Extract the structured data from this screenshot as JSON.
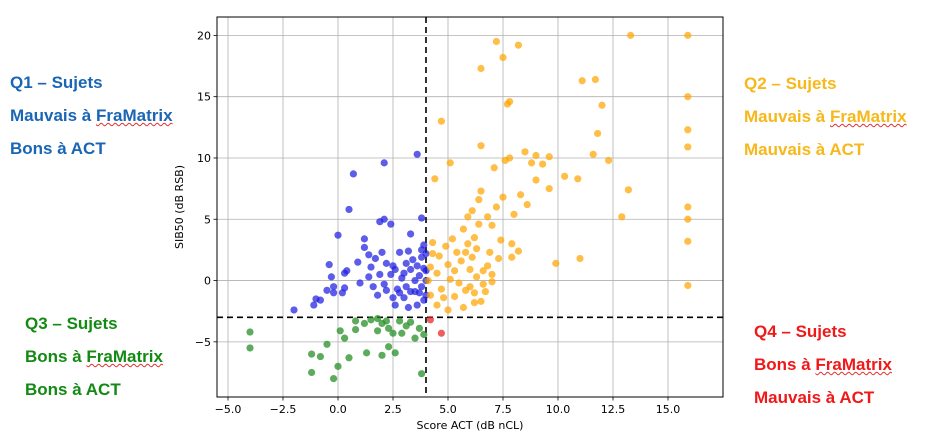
{
  "colors": {
    "q1": "#1a66b5",
    "q2": "#f6b81a",
    "q3": "#138a13",
    "q4": "#f01818",
    "q1_points": "#1f1fe0",
    "q2_points": "#ffa500",
    "q3_points": "#1f8a1f",
    "q4_points": "#e82020"
  },
  "annotations": {
    "q1": {
      "line1": "Q1 – Sujets",
      "line2_prefix": "Mauvais à ",
      "line2_brand": "FraMatrix",
      "line3": "Bons à ACT"
    },
    "q2": {
      "line1": "Q2 – Sujets",
      "line2_prefix": "Mauvais à ",
      "line2_brand": "FraMatrix",
      "line3": "Mauvais à ACT"
    },
    "q3": {
      "line1": "Q3 – Sujets",
      "line2_prefix": "Bons à ",
      "line2_brand": "FraMatrix",
      "line3": "Bons à ACT"
    },
    "q4": {
      "line1": "Q4 – Sujets",
      "line2_prefix": "Bons à ",
      "line2_brand": "FraMatrix",
      "line3": "Mauvais à ACT"
    }
  },
  "chart_data": {
    "type": "scatter",
    "title": "",
    "xlabel": "Score ACT (dB nCL)",
    "ylabel": "SIB50 (dB RSB)",
    "xlim": [
      -5.5,
      17.5
    ],
    "ylim": [
      -9.5,
      21.5
    ],
    "xticks": [
      -5.0,
      -2.5,
      0.0,
      2.5,
      5.0,
      7.5,
      10.0,
      12.5,
      15.0
    ],
    "xtick_labels": [
      "−5.0",
      "−2.5",
      "0.0",
      "2.5",
      "5.0",
      "7.5",
      "10.0",
      "12.5",
      "15.0"
    ],
    "yticks": [
      -5,
      0,
      5,
      10,
      15,
      20
    ],
    "ytick_labels": [
      "−5",
      "0",
      "5",
      "10",
      "15",
      "20"
    ],
    "grid": true,
    "thresholds": {
      "x": 4.0,
      "y": -3.0
    },
    "series": [
      {
        "quadrant": "Q1",
        "points": [
          [
            -2.0,
            -2.4
          ],
          [
            -1.1,
            -2.0
          ],
          [
            -1.0,
            -1.5
          ],
          [
            -0.8,
            -1.6
          ],
          [
            -0.5,
            -0.8
          ],
          [
            -0.3,
            0.3
          ],
          [
            -0.2,
            -1.0
          ],
          [
            -0.2,
            -0.5
          ],
          [
            0.2,
            -1.0
          ],
          [
            0.3,
            -0.6
          ],
          [
            0.3,
            0.6
          ],
          [
            0.4,
            0.8
          ],
          [
            0.5,
            5.8
          ],
          [
            0.7,
            8.7
          ],
          [
            0.9,
            1.5
          ],
          [
            1.0,
            -0.2
          ],
          [
            1.2,
            2.7
          ],
          [
            1.2,
            3.4
          ],
          [
            1.4,
            2.1
          ],
          [
            1.4,
            0.3
          ],
          [
            1.5,
            1.1
          ],
          [
            1.6,
            -0.5
          ],
          [
            1.7,
            1.8
          ],
          [
            1.8,
            -1.2
          ],
          [
            1.9,
            0.5
          ],
          [
            2.0,
            2.3
          ],
          [
            2.1,
            -0.3
          ],
          [
            2.1,
            5.0
          ],
          [
            2.2,
            1.4
          ],
          [
            2.2,
            -0.8
          ],
          [
            2.4,
            0.5
          ],
          [
            2.5,
            -1.4
          ],
          [
            2.5,
            1.2
          ],
          [
            2.6,
            0.9
          ],
          [
            2.6,
            -2.0
          ],
          [
            2.7,
            -0.7
          ],
          [
            2.8,
            2.3
          ],
          [
            2.8,
            -1.0
          ],
          [
            2.9,
            0.2
          ],
          [
            3.0,
            0.6
          ],
          [
            3.0,
            -1.4
          ],
          [
            3.1,
            1.4
          ],
          [
            3.1,
            -0.5
          ],
          [
            3.2,
            2.4
          ],
          [
            3.2,
            -2.2
          ],
          [
            3.3,
            0.9
          ],
          [
            3.3,
            -0.9
          ],
          [
            3.4,
            1.7
          ],
          [
            3.5,
            0.0
          ],
          [
            3.5,
            -0.9
          ],
          [
            3.6,
            1.2
          ],
          [
            3.6,
            10.3
          ],
          [
            3.6,
            -2.0
          ],
          [
            3.7,
            0.4
          ],
          [
            3.7,
            -1.0
          ],
          [
            3.8,
            1.9
          ],
          [
            3.8,
            5.1
          ],
          [
            3.8,
            2.5
          ],
          [
            3.8,
            -0.5
          ],
          [
            3.9,
            2.9
          ],
          [
            3.9,
            1.0
          ],
          [
            3.9,
            -1.6
          ],
          [
            4.0,
            0.0
          ],
          [
            4.0,
            0.8
          ],
          [
            4.0,
            -1.2
          ],
          [
            4.0,
            2.2
          ],
          [
            2.1,
            9.6
          ],
          [
            3.3,
            3.8
          ],
          [
            1.9,
            4.8
          ],
          [
            2.4,
            4.6
          ],
          [
            0.0,
            3.7
          ],
          [
            -0.4,
            1.3
          ]
        ]
      },
      {
        "quadrant": "Q2",
        "points": [
          [
            4.1,
            0.0
          ],
          [
            4.2,
            1.1
          ],
          [
            4.2,
            -1.2
          ],
          [
            4.3,
            2.2
          ],
          [
            4.3,
            3.1
          ],
          [
            4.4,
            8.3
          ],
          [
            4.5,
            0.6
          ],
          [
            4.5,
            -2.0
          ],
          [
            4.6,
            2.0
          ],
          [
            4.7,
            13.0
          ],
          [
            4.7,
            -0.7
          ],
          [
            4.8,
            -1.4
          ],
          [
            4.9,
            2.8
          ],
          [
            5.0,
            1.3
          ],
          [
            5.0,
            -2.4
          ],
          [
            5.1,
            0.1
          ],
          [
            5.1,
            9.6
          ],
          [
            5.2,
            3.4
          ],
          [
            5.3,
            -1.3
          ],
          [
            5.3,
            0.8
          ],
          [
            5.4,
            2.3
          ],
          [
            5.5,
            -0.2
          ],
          [
            5.6,
            1.6
          ],
          [
            5.7,
            -2.2
          ],
          [
            5.7,
            4.2
          ],
          [
            5.8,
            -0.8
          ],
          [
            5.9,
            3.0
          ],
          [
            5.9,
            5.2
          ],
          [
            6.0,
            -0.5
          ],
          [
            6.0,
            0.9
          ],
          [
            6.1,
            1.9
          ],
          [
            6.2,
            -1.8
          ],
          [
            6.2,
            -1.0
          ],
          [
            6.2,
            3.5
          ],
          [
            6.3,
            0.3
          ],
          [
            6.3,
            2.6
          ],
          [
            6.4,
            4.6
          ],
          [
            6.4,
            6.6
          ],
          [
            6.5,
            -1.7
          ],
          [
            6.5,
            7.3
          ],
          [
            6.5,
            11.0
          ],
          [
            6.6,
            0.8
          ],
          [
            6.6,
            -0.3
          ],
          [
            6.7,
            -0.9
          ],
          [
            6.8,
            1.2
          ],
          [
            6.8,
            5.2
          ],
          [
            6.9,
            2.3
          ],
          [
            7.0,
            -0.1
          ],
          [
            7.0,
            0.5
          ],
          [
            7.0,
            4.5
          ],
          [
            7.1,
            9.2
          ],
          [
            7.2,
            19.5
          ],
          [
            7.3,
            1.8
          ],
          [
            7.4,
            3.3
          ],
          [
            7.5,
            6.8
          ],
          [
            7.6,
            9.8
          ],
          [
            7.7,
            14.4
          ],
          [
            7.8,
            10.0
          ],
          [
            7.8,
            14.6
          ],
          [
            7.9,
            3.0
          ],
          [
            7.9,
            1.9
          ],
          [
            8.0,
            5.4
          ],
          [
            8.2,
            2.4
          ],
          [
            8.2,
            19.2
          ],
          [
            8.3,
            7.0
          ],
          [
            8.5,
            10.5
          ],
          [
            8.6,
            6.2
          ],
          [
            8.8,
            9.6
          ],
          [
            9.0,
            10.2
          ],
          [
            9.0,
            8.2
          ],
          [
            9.3,
            9.5
          ],
          [
            9.6,
            10.1
          ],
          [
            9.6,
            7.5
          ],
          [
            9.9,
            1.4
          ],
          [
            10.3,
            8.5
          ],
          [
            10.9,
            8.3
          ],
          [
            11.0,
            1.8
          ],
          [
            11.1,
            16.3
          ],
          [
            11.6,
            10.3
          ],
          [
            11.7,
            16.4
          ],
          [
            11.8,
            12.0
          ],
          [
            12.0,
            14.3
          ],
          [
            12.9,
            5.2
          ],
          [
            13.2,
            7.4
          ],
          [
            13.3,
            20.0
          ],
          [
            15.9,
            20.0
          ],
          [
            15.9,
            15.0
          ],
          [
            15.9,
            12.3
          ],
          [
            15.9,
            10.9
          ],
          [
            15.9,
            6.0
          ],
          [
            15.9,
            5.0
          ],
          [
            15.9,
            3.2
          ],
          [
            15.9,
            -0.4
          ],
          [
            6.5,
            17.3
          ],
          [
            7.5,
            18.2
          ],
          [
            12.3,
            9.8
          ],
          [
            5.8,
            2.3
          ],
          [
            7.2,
            6.0
          ],
          [
            6.1,
            5.7
          ]
        ]
      },
      {
        "quadrant": "Q3",
        "points": [
          [
            -4.0,
            -4.2
          ],
          [
            -4.0,
            -5.5
          ],
          [
            -1.2,
            -7.5
          ],
          [
            -1.2,
            -6.0
          ],
          [
            -0.8,
            -6.2
          ],
          [
            -0.5,
            -5.2
          ],
          [
            -0.2,
            -8.0
          ],
          [
            0.0,
            -7.0
          ],
          [
            0.1,
            -4.1
          ],
          [
            0.3,
            -4.7
          ],
          [
            0.5,
            -6.3
          ],
          [
            0.8,
            -4.0
          ],
          [
            0.8,
            -3.3
          ],
          [
            1.2,
            -3.5
          ],
          [
            1.3,
            -5.9
          ],
          [
            1.5,
            -3.2
          ],
          [
            1.8,
            -3.1
          ],
          [
            1.8,
            -4.1
          ],
          [
            2.0,
            -3.5
          ],
          [
            2.0,
            -6.1
          ],
          [
            2.2,
            -3.3
          ],
          [
            2.3,
            -5.4
          ],
          [
            2.3,
            -3.9
          ],
          [
            2.5,
            -4.3
          ],
          [
            2.6,
            -5.9
          ],
          [
            2.8,
            -3.3
          ],
          [
            2.9,
            -4.3
          ],
          [
            3.1,
            -3.7
          ],
          [
            3.3,
            -3.4
          ],
          [
            3.5,
            -4.7
          ],
          [
            3.7,
            -3.9
          ],
          [
            3.8,
            -7.6
          ],
          [
            3.9,
            -4.4
          ]
        ]
      },
      {
        "quadrant": "Q4",
        "points": [
          [
            4.2,
            -3.2
          ],
          [
            4.7,
            -4.3
          ]
        ]
      }
    ]
  }
}
